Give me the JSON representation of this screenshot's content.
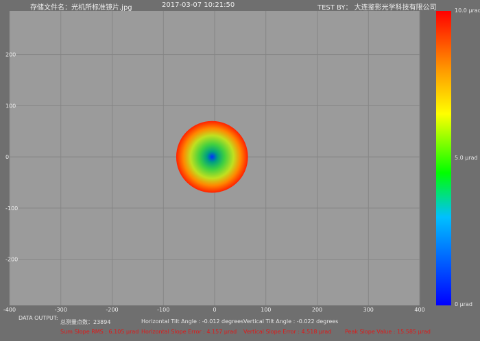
{
  "header": {
    "file": "存储文件名：光机所标准镜片.jpg",
    "datetime": "2017-03-07 10:21:50",
    "test_by": "TEST BY： 大连鉴影光学科技有限公司"
  },
  "chart_data": {
    "type": "heatmap",
    "xlim": [
      -400,
      400
    ],
    "ylim": [
      -290,
      285
    ],
    "xticks": [
      "-400",
      "-300",
      "-200",
      "-100",
      "0",
      "100",
      "200",
      "300",
      "400"
    ],
    "yticks": [
      "200",
      "100",
      "0",
      "-100",
      "-200"
    ],
    "grid": true,
    "colorbar": {
      "max_label": "10.0 μrad",
      "mid_label": "5.0 μrad",
      "min_label": "0 μrad",
      "colors": [
        "#0000ff",
        "#00ff00",
        "#ffff00",
        "#ff0000"
      ]
    },
    "spot": {
      "center": [
        -5,
        0
      ],
      "radius": 70
    }
  },
  "output": {
    "label": "DATA OUTPUT:",
    "points": "总测量点数：23894",
    "htilt": "Horizontal Tilt Angle : -0.012 degrees",
    "vtilt": "Vertical Tilt Angle : -0.022 degrees",
    "rms": "Sum Slope RMS : 6.105 μrad",
    "herr": "Horizontal Slope Error : 4.157 μrad",
    "verr": "Vertical Slope Error : 4.518 μrad",
    "peak": "Peak Slope Value : 15.585 μrad"
  }
}
